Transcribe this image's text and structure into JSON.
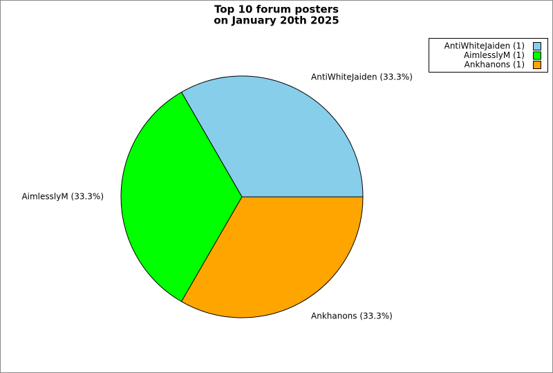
{
  "chart_data": {
    "type": "pie",
    "title": [
      "Top 10 forum posters",
      "on January 20th 2025"
    ],
    "values": [
      1,
      1,
      1
    ],
    "colors": [
      "#87ceeb",
      "#00ff00",
      "#ffa500"
    ],
    "legend_labels": [
      "AntiWhiteJaiden (1)",
      "AimlesslyM (1)",
      "Ankhanons (1)"
    ],
    "slice_labels": [
      "AntiWhiteJaiden (33.3%)",
      "AimlesslyM (33.3%)",
      "Ankhanons (33.3%)"
    ],
    "legend": "top-right"
  }
}
